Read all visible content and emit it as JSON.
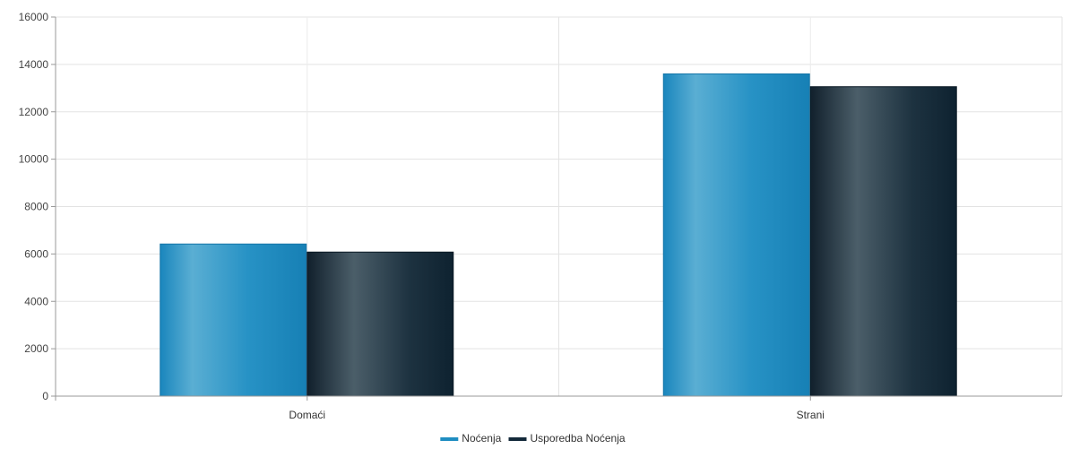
{
  "chart_data": {
    "type": "bar",
    "categories": [
      "Domaći",
      "Strani"
    ],
    "series": [
      {
        "name": "Noćenja",
        "values": [
          6420,
          13600
        ],
        "color": "#1f8dc1"
      },
      {
        "name": "Usporedba Noćenja",
        "values": [
          6080,
          13060
        ],
        "color": "#13293a"
      }
    ],
    "ylim": [
      0,
      16000
    ],
    "yticks": [
      0,
      2000,
      4000,
      6000,
      8000,
      10000,
      12000,
      14000,
      16000
    ],
    "grid": true,
    "legend": "bottom-center"
  }
}
